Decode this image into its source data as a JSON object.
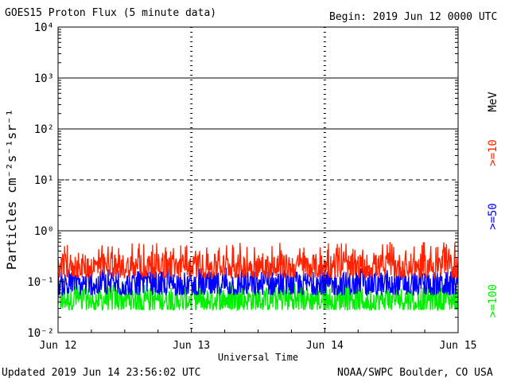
{
  "header": {
    "title": "GOES15 Proton Flux (5 minute data)",
    "begin": "Begin: 2019 Jun 12 0000 UTC"
  },
  "footer": {
    "updated": "Updated 2019 Jun 14 23:56:02 UTC",
    "credit": "NOAA/SWPC Boulder, CO USA"
  },
  "chart_data": {
    "type": "line",
    "title": "GOES15 Proton Flux (5 minute data)",
    "xlabel": "Universal Time",
    "ylabel": "Particles cm⁻²s⁻¹sr⁻¹",
    "yscale": "log",
    "ylim": [
      0.01,
      10000
    ],
    "xlim": [
      "2019-06-12 00:00",
      "2019-06-15 00:00"
    ],
    "x_ticks": [
      "Jun 12",
      "Jun 13",
      "Jun 14",
      "Jun 15"
    ],
    "y_ticks": [
      "10⁻²",
      "10⁻¹",
      "10⁰",
      "10¹",
      "10²",
      "10³",
      "10⁴"
    ],
    "threshold_lines": [
      {
        "value": 1000,
        "style": "solid"
      },
      {
        "value": 100,
        "style": "solid"
      },
      {
        "value": 10,
        "style": "dashed"
      },
      {
        "value": 1,
        "style": "solid"
      }
    ],
    "legend_unit": "MeV",
    "legend_placement": "right",
    "grid": "dashed vertical at day boundaries",
    "series": [
      {
        "name": ">=10",
        "color": "#ff2200",
        "typical": 0.2,
        "min": 0.12,
        "max": 0.6
      },
      {
        "name": ">=50",
        "color": "#0000ff",
        "typical": 0.09,
        "min": 0.055,
        "max": 0.2
      },
      {
        "name": ">=100",
        "color": "#00ee00",
        "typical": 0.045,
        "min": 0.028,
        "max": 0.1
      }
    ]
  }
}
